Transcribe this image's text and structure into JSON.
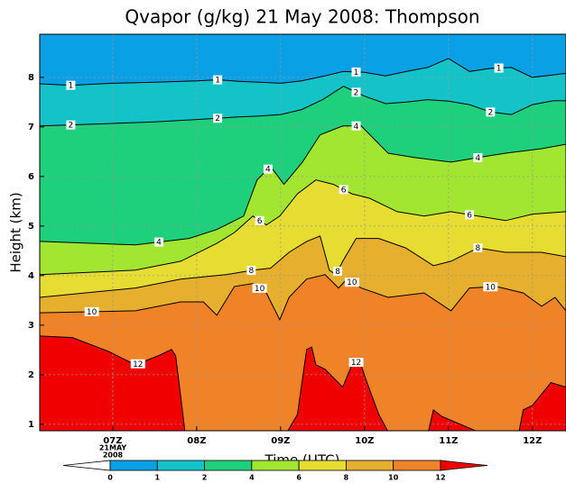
{
  "chart_data": {
    "type": "contour",
    "title": "Qvapor (g/kg) 21 May 2008: Thompson",
    "xlabel": "Time (UTC)",
    "ylabel": "Height (km)",
    "date_label": [
      "21MAY",
      "2008"
    ],
    "xlim": [
      6.13,
      12.4
    ],
    "ylim": [
      0.87,
      8.87
    ],
    "xticks": [
      {
        "value": 7,
        "label": "07Z"
      },
      {
        "value": 8,
        "label": "08Z"
      },
      {
        "value": 9,
        "label": "09Z"
      },
      {
        "value": 10,
        "label": "10Z"
      },
      {
        "value": 11,
        "label": "11Z"
      },
      {
        "value": 12,
        "label": "12Z"
      }
    ],
    "yticks": [
      1,
      2,
      3,
      4,
      5,
      6,
      7,
      8
    ],
    "grid": true,
    "levels": [
      0,
      1,
      2,
      4,
      6,
      8,
      10,
      12
    ],
    "colors": [
      "#ffffff",
      "#0aa0e6",
      "#14c3c8",
      "#1ecf7c",
      "#a2e632",
      "#e6dc32",
      "#e6af2d",
      "#f08228",
      "#f00000"
    ],
    "contours": [
      {
        "name": "1",
        "x": [
          6.13,
          6.5,
          7.0,
          7.5,
          8.0,
          8.25,
          8.5,
          8.75,
          9.0,
          9.25,
          9.5,
          9.75,
          10.0,
          10.25,
          10.5,
          10.75,
          11.0,
          11.25,
          11.5,
          11.75,
          12.0,
          12.25,
          12.4
        ],
        "y": [
          7.87,
          7.84,
          7.88,
          7.9,
          7.93,
          7.95,
          7.92,
          7.9,
          7.88,
          7.93,
          8.02,
          8.12,
          8.1,
          8.03,
          8.12,
          8.2,
          8.38,
          8.12,
          8.18,
          8.2,
          8.0,
          8.05,
          8.08
        ]
      },
      {
        "name": "2",
        "x": [
          6.13,
          6.5,
          7.0,
          7.5,
          8.0,
          8.5,
          8.75,
          9.0,
          9.25,
          9.5,
          9.75,
          10.0,
          10.25,
          10.5,
          10.75,
          11.0,
          11.25,
          11.5,
          11.75,
          12.0,
          12.25,
          12.4
        ],
        "y": [
          7.02,
          7.04,
          7.07,
          7.1,
          7.15,
          7.2,
          7.22,
          7.25,
          7.35,
          7.55,
          7.82,
          7.62,
          7.47,
          7.5,
          7.55,
          7.52,
          7.45,
          7.3,
          7.25,
          7.45,
          7.53,
          7.53
        ]
      },
      {
        "name": "4",
        "x": [
          6.13,
          7.27,
          7.91,
          8.24,
          8.56,
          8.72,
          8.88,
          9.04,
          9.26,
          9.47,
          9.74,
          9.96,
          10.28,
          10.6,
          11.03,
          11.35,
          11.68,
          12.11,
          12.4
        ],
        "y": [
          4.69,
          4.62,
          4.75,
          4.93,
          5.2,
          5.93,
          6.2,
          5.84,
          6.29,
          6.84,
          7.02,
          7.02,
          6.47,
          6.38,
          6.29,
          6.38,
          6.47,
          6.56,
          6.65
        ]
      },
      {
        "name": "6",
        "x": [
          6.13,
          7.27,
          7.81,
          8.24,
          8.45,
          8.67,
          8.83,
          8.99,
          9.2,
          9.42,
          9.63,
          9.85,
          10.06,
          10.39,
          10.71,
          11.03,
          11.35,
          11.68,
          12.0,
          12.4
        ],
        "y": [
          4.02,
          4.11,
          4.29,
          4.65,
          4.87,
          5.2,
          5.02,
          5.2,
          5.65,
          5.93,
          5.84,
          5.65,
          5.56,
          5.29,
          5.2,
          5.29,
          5.2,
          5.11,
          5.24,
          5.29
        ]
      },
      {
        "name": "8",
        "x": [
          6.13,
          7.27,
          7.81,
          8.35,
          8.67,
          8.88,
          9.1,
          9.31,
          9.47,
          9.58,
          9.66,
          9.74,
          9.9,
          10.17,
          10.49,
          10.82,
          11.03,
          11.35,
          11.68,
          12.11,
          12.4
        ],
        "y": [
          3.56,
          3.75,
          3.93,
          4.02,
          4.11,
          4.15,
          4.47,
          4.69,
          4.8,
          4.11,
          4.02,
          4.29,
          4.75,
          4.75,
          4.56,
          4.2,
          4.29,
          4.56,
          4.47,
          4.47,
          4.38
        ]
      },
      {
        "name": "10",
        "x": [
          6.13,
          7.27,
          7.81,
          8.08,
          8.24,
          8.45,
          8.67,
          8.83,
          8.99,
          9.1,
          9.31,
          9.53,
          9.69,
          9.79,
          9.96,
          10.28,
          10.71,
          11.03,
          11.25,
          11.57,
          11.89,
          12.11,
          12.27,
          12.4
        ],
        "y": [
          3.25,
          3.29,
          3.47,
          3.47,
          3.2,
          3.78,
          3.84,
          3.65,
          3.11,
          3.56,
          3.93,
          4.02,
          3.75,
          3.93,
          3.75,
          3.56,
          3.65,
          3.29,
          3.75,
          3.78,
          3.65,
          3.38,
          3.56,
          3.29
        ]
      },
      {
        "name": "12",
        "x": [
          6.13,
          6.52,
          6.95,
          7.27,
          7.54,
          7.7,
          7.75,
          7.81,
          7.86,
          9.08,
          9.2,
          9.31,
          9.37,
          9.42,
          9.53,
          9.74,
          9.85,
          9.94,
          10.01,
          10.17,
          10.28,
          10.76,
          10.82,
          10.92,
          11.35,
          11.84,
          11.89,
          12.0,
          12.22,
          12.4
        ],
        "y": [
          2.78,
          2.75,
          2.47,
          2.2,
          2.38,
          2.51,
          2.38,
          1.56,
          0.85,
          0.85,
          1.2,
          2.51,
          2.56,
          2.2,
          2.11,
          1.75,
          2.2,
          2.29,
          1.93,
          1.2,
          0.85,
          0.85,
          1.29,
          1.16,
          0.85,
          0.85,
          1.29,
          1.38,
          1.84,
          1.75
        ]
      }
    ]
  }
}
